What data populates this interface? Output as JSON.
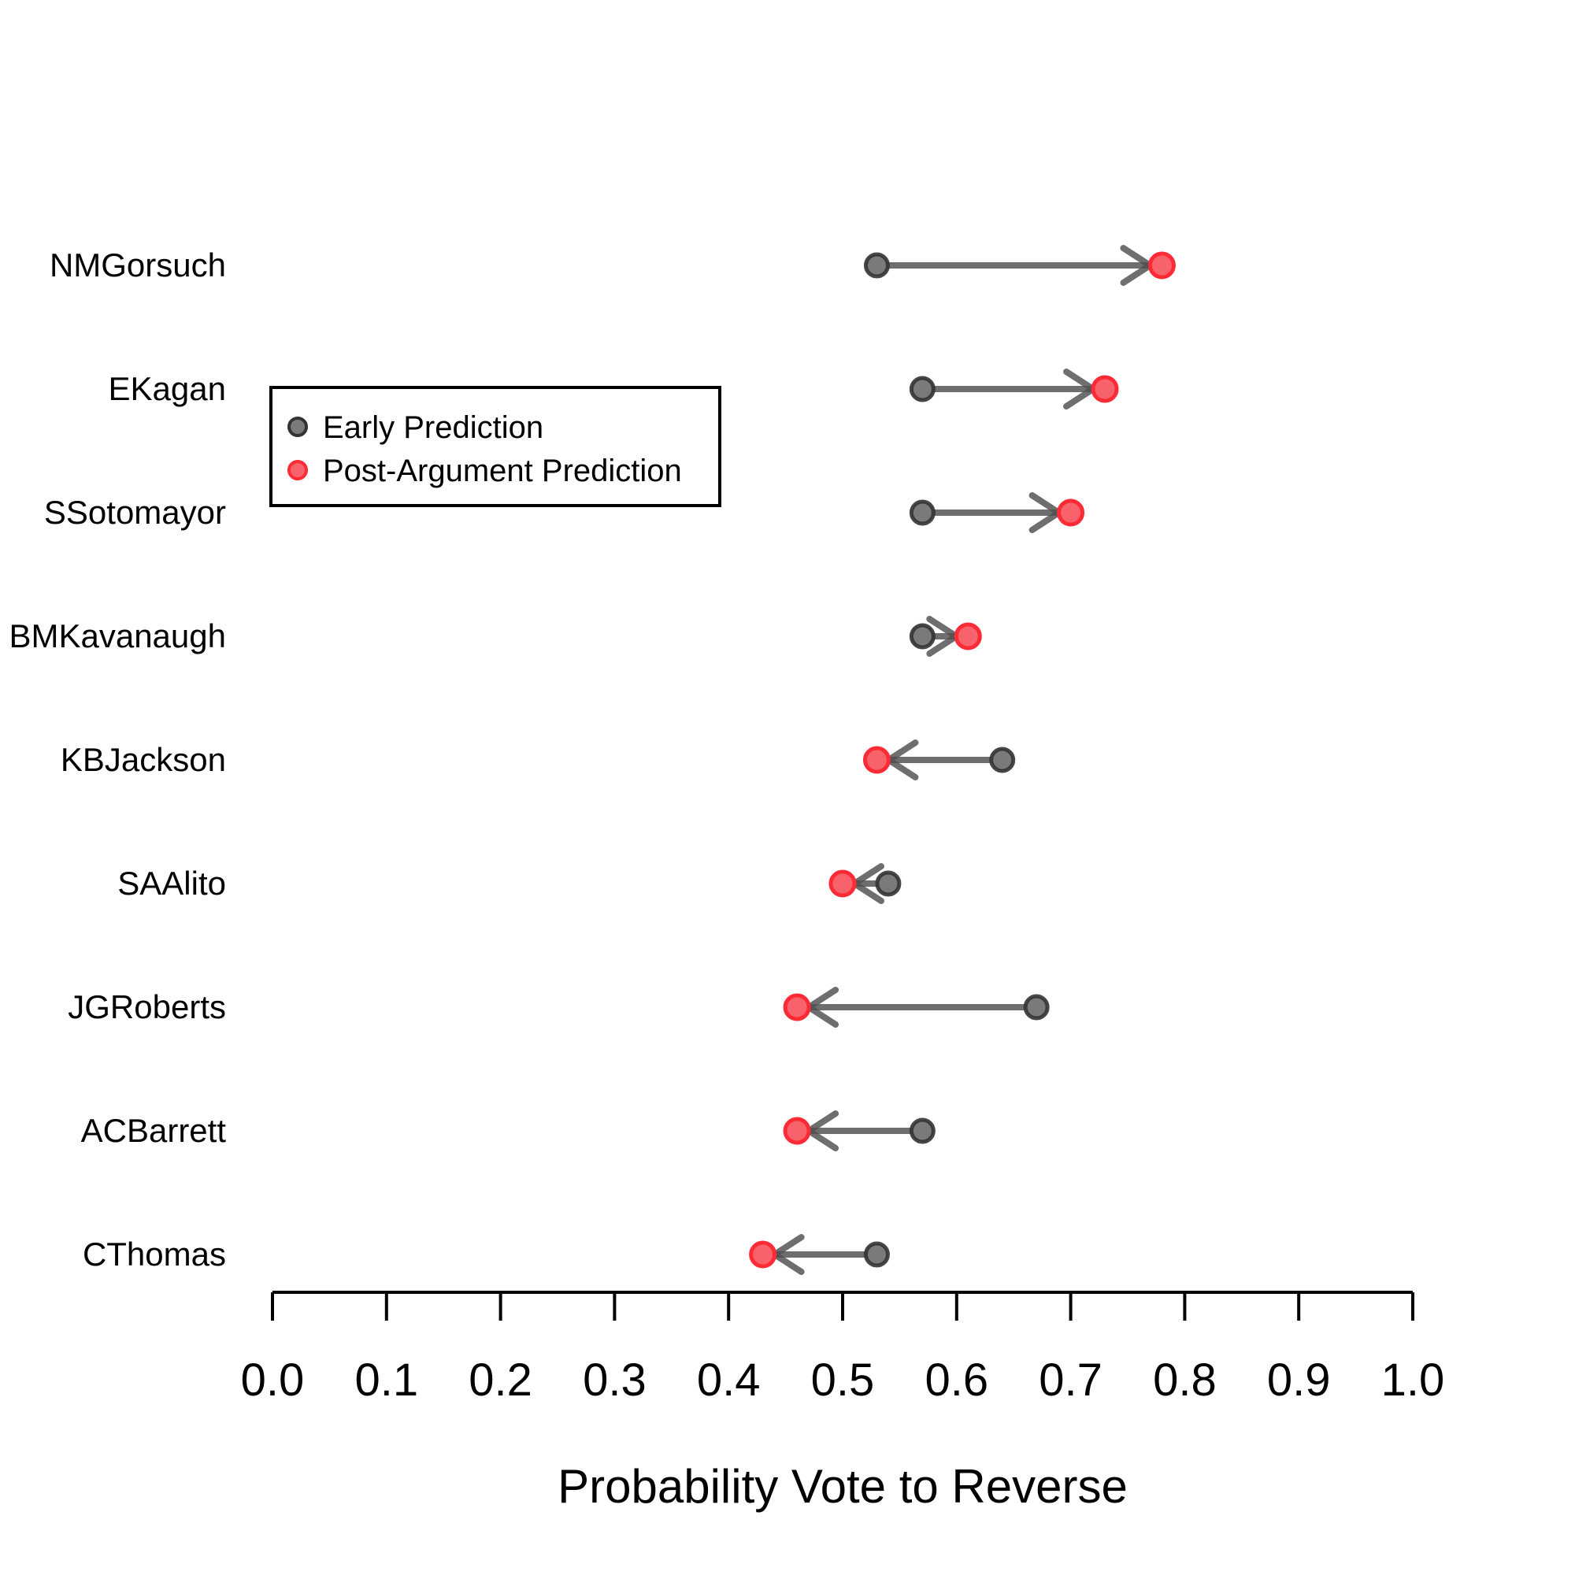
{
  "chart_data": {
    "type": "scatter",
    "subtype": "dumbbell-arrow",
    "title": "",
    "xlabel": "Probability Vote to Reverse",
    "ylabel": "",
    "xlim": [
      0.0,
      1.0
    ],
    "x_tick_labels": [
      "0.0",
      "0.1",
      "0.2",
      "0.3",
      "0.4",
      "0.5",
      "0.6",
      "0.7",
      "0.8",
      "0.9",
      "1.0"
    ],
    "x_tick_values": [
      0.0,
      0.1,
      0.2,
      0.3,
      0.4,
      0.5,
      0.6,
      0.7,
      0.8,
      0.9,
      1.0
    ],
    "grid": "off",
    "categories": [
      "NMGorsuch",
      "EKagan",
      "SSotomayor",
      "BMKavanaugh",
      "KBJackson",
      "SAAlito",
      "JGRoberts",
      "ACBarrett",
      "CThomas"
    ],
    "series": [
      {
        "name": "Early Prediction",
        "values": [
          0.53,
          0.57,
          0.57,
          0.57,
          0.64,
          0.54,
          0.67,
          0.57,
          0.53
        ]
      },
      {
        "name": "Post-Argument Prediction",
        "values": [
          0.78,
          0.73,
          0.7,
          0.61,
          0.53,
          0.5,
          0.46,
          0.46,
          0.43
        ]
      }
    ],
    "arrows": "from Early Prediction to Post-Argument Prediction",
    "legend": {
      "position": "upper-left-inset",
      "entries": [
        {
          "label": "Early Prediction",
          "color": "#7a7a7a"
        },
        {
          "label": "Post-Argument Prediction",
          "color": "#f8636b"
        }
      ]
    },
    "colors": {
      "early_fill": "#7a7a7a",
      "early_stroke": "#333333",
      "post_fill": "#f8636b",
      "post_stroke": "#fd2b36",
      "arrow": "#4e4e4e",
      "axis": "#000000",
      "background": "#ffffff"
    }
  }
}
